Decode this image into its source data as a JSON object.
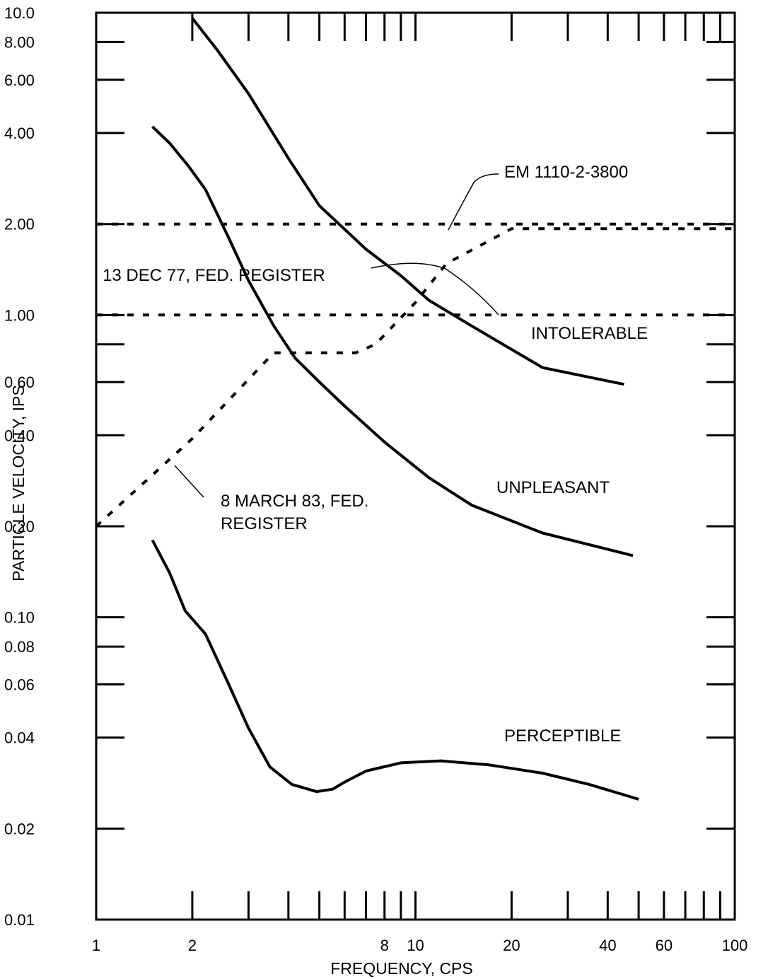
{
  "chart_data": {
    "type": "line",
    "xlabel": "FREQUENCY, CPS",
    "ylabel": "PARTICLE VELOCITY, IPS",
    "xscale": "log",
    "yscale": "log",
    "xlim": [
      1,
      100
    ],
    "ylim": [
      0.01,
      10
    ],
    "grid": false,
    "legend": "none",
    "x_ticks": [
      1,
      2,
      8,
      10,
      20,
      40,
      60,
      100
    ],
    "x_tick_labels": [
      "1",
      "2",
      "8",
      "10",
      "20",
      "40",
      "60",
      "100"
    ],
    "x_minor_ticks": [
      3,
      4,
      5,
      6,
      7,
      9,
      30,
      50,
      70,
      80,
      90
    ],
    "y_ticks": [
      0.01,
      0.02,
      0.04,
      0.06,
      0.08,
      0.1,
      0.2,
      0.4,
      0.6,
      1.0,
      2.0,
      4.0,
      6.0,
      8.0,
      10.0
    ],
    "y_tick_labels": [
      "0.01",
      "0.02",
      "0.04",
      "0.06",
      "0.08",
      "0.10",
      "0.20",
      "0.40",
      "0.60",
      "1.00",
      "2.00",
      "4.00",
      "6.00",
      "8.00",
      "10.0"
    ],
    "y_minor_ticks": [
      0.8
    ],
    "series": [
      {
        "id": "intolerable",
        "style": "solid",
        "x": [
          2.0,
          2.4,
          3.0,
          4.0,
          5.0,
          7.0,
          9.0,
          11.0,
          15.0,
          25.0,
          45.0
        ],
        "y": [
          9.6,
          7.5,
          5.4,
          3.3,
          2.3,
          1.65,
          1.35,
          1.12,
          0.92,
          0.67,
          0.59
        ]
      },
      {
        "id": "unpleasant",
        "style": "solid",
        "x": [
          1.5,
          1.7,
          1.95,
          2.2,
          2.6,
          3.0,
          3.6,
          4.2,
          5.0,
          6.0,
          8.0,
          11.0,
          15.0,
          25.0,
          48.0
        ],
        "y": [
          4.2,
          3.7,
          3.1,
          2.6,
          1.8,
          1.3,
          0.92,
          0.72,
          0.6,
          0.5,
          0.38,
          0.29,
          0.235,
          0.19,
          0.16
        ]
      },
      {
        "id": "perceptible",
        "style": "solid",
        "x": [
          1.5,
          1.7,
          1.9,
          2.2,
          2.6,
          3.0,
          3.5,
          4.1,
          4.9,
          5.5,
          6.0,
          7.0,
          9.0,
          12.0,
          17.0,
          25.0,
          35.0,
          50.0
        ],
        "y": [
          0.18,
          0.14,
          0.105,
          0.088,
          0.06,
          0.043,
          0.032,
          0.028,
          0.0265,
          0.027,
          0.0285,
          0.031,
          0.033,
          0.0335,
          0.0325,
          0.0305,
          0.028,
          0.025
        ]
      },
      {
        "id": "fed-register-1983",
        "style": "dashed",
        "x": [
          1.0,
          2.0,
          3.6,
          6.5,
          7.5,
          10.0,
          12.5,
          20.0,
          100.0
        ],
        "y": [
          0.2,
          0.39,
          0.75,
          0.75,
          0.8,
          1.1,
          1.48,
          1.93,
          1.93
        ]
      },
      {
        "id": "em-1110-2-3800",
        "style": "dashed",
        "x": [
          1.0,
          100.0
        ],
        "y": [
          2.0,
          2.0
        ]
      },
      {
        "id": "fed-register-1977",
        "style": "dashed",
        "x": [
          1.0,
          100.0
        ],
        "y": [
          1.0,
          1.0
        ]
      }
    ],
    "annotations": {
      "em_1110": "EM 1110-2-3800",
      "dec_77": "13 DEC 77, FED. REGISTER",
      "intolerable": "INTOLERABLE",
      "unpleasant": "UNPLEASANT",
      "march_83_line1": "8 MARCH 83, FED.",
      "march_83_line2": "REGISTER",
      "perceptible": "PERCEPTIBLE"
    }
  }
}
